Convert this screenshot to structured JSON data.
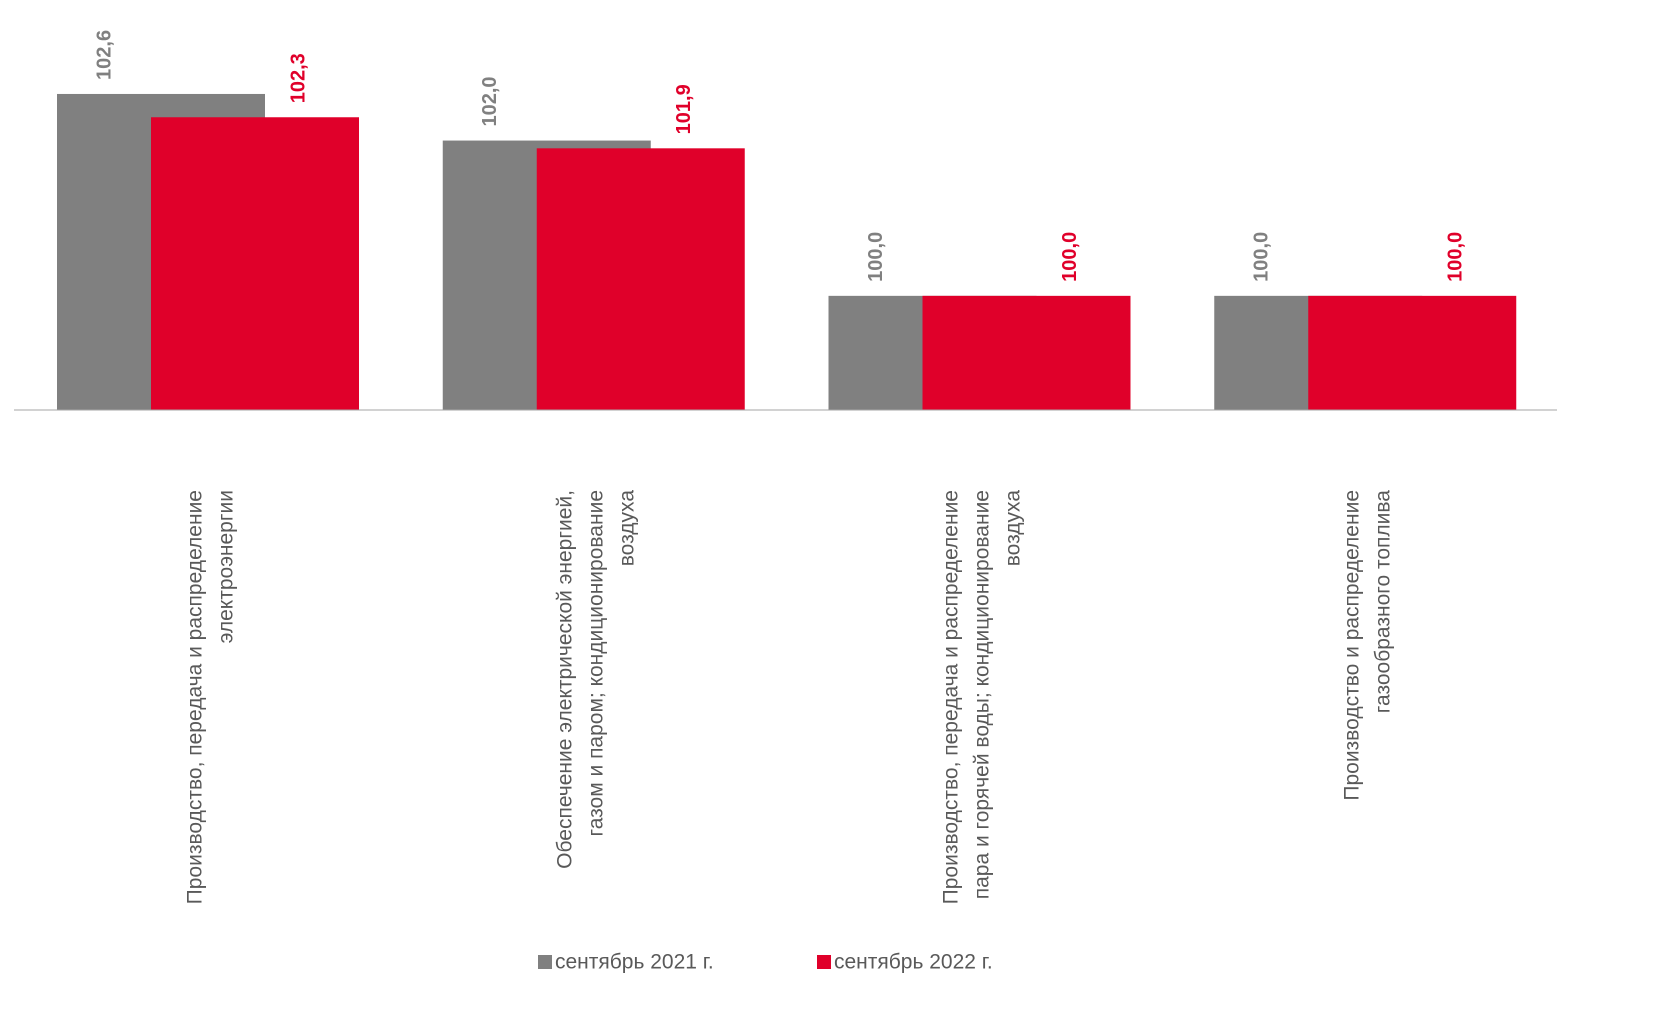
{
  "chart_data": {
    "type": "bar",
    "categories": [
      "Производство, передача и распределение электроэнергии",
      "Обеспечение электрической энергией, газом и паром; кондиционирование воздуха",
      "Производство, передача и распределение пара и горячей воды; кондиционирование воздуха",
      "Производство и распределение газообразного топлива"
    ],
    "series": [
      {
        "name": "сентябрь 2021 г.",
        "color": "#808080",
        "values": [
          102.6,
          102.0,
          100.0,
          100.0
        ],
        "value_labels": [
          "102,6",
          "102,0",
          "100,0",
          "100,0"
        ]
      },
      {
        "name": "сентябрь 2022 г.",
        "color": "#e0002a",
        "values": [
          102.3,
          101.9,
          100.0,
          100.0
        ],
        "value_labels": [
          "102,3",
          "101,9",
          "100,0",
          "100,0"
        ]
      }
    ],
    "ylim": [
      98.53,
      103.81
    ],
    "grid": false,
    "legend": "bottom"
  }
}
